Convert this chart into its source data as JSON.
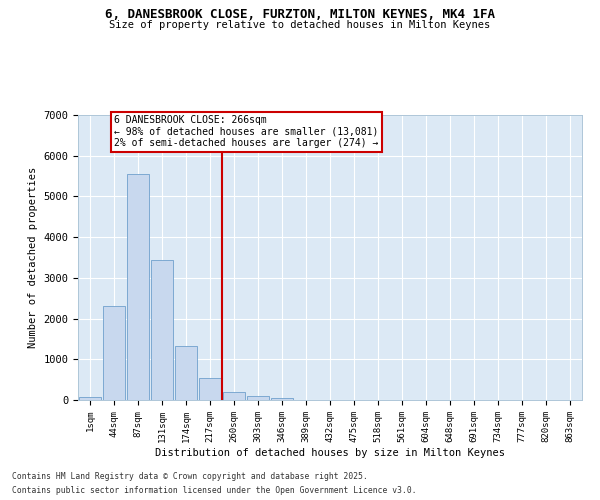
{
  "title_line1": "6, DANESBROOK CLOSE, FURZTON, MILTON KEYNES, MK4 1FA",
  "title_line2": "Size of property relative to detached houses in Milton Keynes",
  "xlabel": "Distribution of detached houses by size in Milton Keynes",
  "ylabel": "Number of detached properties",
  "categories": [
    "1sqm",
    "44sqm",
    "87sqm",
    "131sqm",
    "174sqm",
    "217sqm",
    "260sqm",
    "303sqm",
    "346sqm",
    "389sqm",
    "432sqm",
    "475sqm",
    "518sqm",
    "561sqm",
    "604sqm",
    "648sqm",
    "691sqm",
    "734sqm",
    "777sqm",
    "820sqm",
    "863sqm"
  ],
  "values": [
    75,
    2300,
    5550,
    3450,
    1330,
    530,
    190,
    95,
    55,
    5,
    0,
    0,
    0,
    0,
    0,
    0,
    0,
    0,
    0,
    0,
    0
  ],
  "bar_color": "#c8d8ee",
  "bar_edge_color": "#6fa0cc",
  "vline_index": 6,
  "vline_color": "#cc0000",
  "annotation_title": "6 DANESBROOK CLOSE: 266sqm",
  "annotation_line1": "← 98% of detached houses are smaller (13,081)",
  "annotation_line2": "2% of semi-detached houses are larger (274) →",
  "ylim": [
    0,
    7000
  ],
  "yticks": [
    0,
    1000,
    2000,
    3000,
    4000,
    5000,
    6000,
    7000
  ],
  "footer_line1": "Contains HM Land Registry data © Crown copyright and database right 2025.",
  "footer_line2": "Contains public sector information licensed under the Open Government Licence v3.0.",
  "fig_bg_color": "#ffffff",
  "plot_bg_color": "#dce9f5",
  "grid_color": "#ffffff",
  "spine_color": "#aec6d8"
}
